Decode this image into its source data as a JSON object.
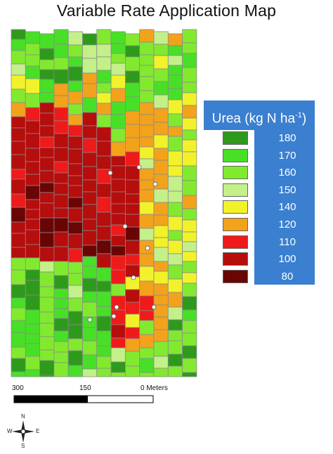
{
  "title": "Variable Rate Application Map",
  "legend": {
    "title_prefix": "Urea (kg N ha",
    "title_sup": "-1",
    "title_suffix": ")",
    "items": [
      {
        "value": "180",
        "color": "#2e9a1c"
      },
      {
        "value": "170",
        "color": "#47e026"
      },
      {
        "value": "160",
        "color": "#82ea2e"
      },
      {
        "value": "150",
        "color": "#c4f08a"
      },
      {
        "value": "140",
        "color": "#f2f22a"
      },
      {
        "value": "120",
        "color": "#f3a21c"
      },
      {
        "value": "110",
        "color": "#ef1a1a"
      },
      {
        "value": "100",
        "color": "#b60d0d"
      },
      {
        "value": "80",
        "color": "#6a0505"
      }
    ]
  },
  "scale": {
    "left": "300",
    "mid": "150",
    "right": "0 Meters"
  },
  "compass": {
    "n": "N",
    "s": "S",
    "e": "E",
    "w": "W"
  }
}
